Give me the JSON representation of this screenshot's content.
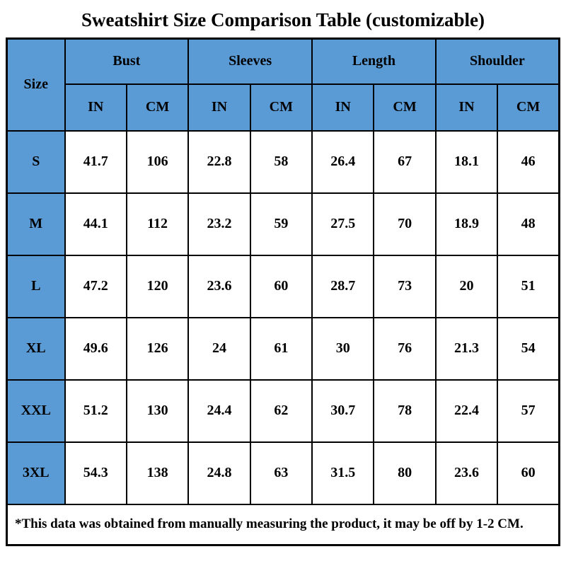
{
  "title": "Sweatshirt Size Comparison Table (customizable)",
  "colors": {
    "header_blue": "#5B9BD5",
    "border": "#000000",
    "text": "#000000",
    "background": "#ffffff"
  },
  "table": {
    "size_header": "Size",
    "groups": [
      {
        "label": "Bust"
      },
      {
        "label": "Sleeves"
      },
      {
        "label": "Length"
      },
      {
        "label": "Shoulder"
      }
    ],
    "unit_in": "IN",
    "unit_cm": "CM",
    "rows": [
      {
        "size": "S",
        "values": [
          "41.7",
          "106",
          "22.8",
          "58",
          "26.4",
          "67",
          "18.1",
          "46"
        ]
      },
      {
        "size": "M",
        "values": [
          "44.1",
          "112",
          "23.2",
          "59",
          "27.5",
          "70",
          "18.9",
          "48"
        ]
      },
      {
        "size": "L",
        "values": [
          "47.2",
          "120",
          "23.6",
          "60",
          "28.7",
          "73",
          "20",
          "51"
        ]
      },
      {
        "size": "XL",
        "values": [
          "49.6",
          "126",
          "24",
          "61",
          "30",
          "76",
          "21.3",
          "54"
        ]
      },
      {
        "size": "XXL",
        "values": [
          "51.2",
          "130",
          "24.4",
          "62",
          "30.7",
          "78",
          "22.4",
          "57"
        ]
      },
      {
        "size": "3XL",
        "values": [
          "54.3",
          "138",
          "24.8",
          "63",
          "31.5",
          "80",
          "23.6",
          "60"
        ]
      }
    ],
    "footnote": "*This data was obtained from manually measuring the product, it may be off by 1-2 CM."
  },
  "chart_data": {
    "type": "table",
    "title": "Sweatshirt Size Comparison Table (customizable)",
    "columns": [
      "Size",
      "Bust IN",
      "Bust CM",
      "Sleeves IN",
      "Sleeves CM",
      "Length IN",
      "Length CM",
      "Shoulder IN",
      "Shoulder CM"
    ],
    "rows": [
      [
        "S",
        41.7,
        106,
        22.8,
        58,
        26.4,
        67,
        18.1,
        46
      ],
      [
        "M",
        44.1,
        112,
        23.2,
        59,
        27.5,
        70,
        18.9,
        48
      ],
      [
        "L",
        47.2,
        120,
        23.6,
        60,
        28.7,
        73,
        20,
        51
      ],
      [
        "XL",
        49.6,
        126,
        24,
        61,
        30,
        76,
        21.3,
        54
      ],
      [
        "XXL",
        51.2,
        130,
        24.4,
        62,
        30.7,
        78,
        22.4,
        57
      ],
      [
        "3XL",
        54.3,
        138,
        24.8,
        63,
        31.5,
        80,
        23.6,
        60
      ]
    ],
    "footnote": "*This data was obtained from manually measuring the product, it may be off by 1-2 CM.",
    "layout": {
      "header_fill": "#5B9BD5",
      "grid": true,
      "units": [
        "IN",
        "CM"
      ]
    }
  }
}
